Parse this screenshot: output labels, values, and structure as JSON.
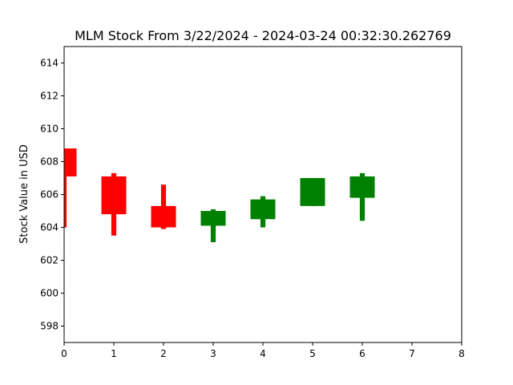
{
  "chart_data": {
    "type": "candlestick",
    "title": "MLM Stock From 3/22/2024 - 2024-03-24 00:32:30.262769",
    "xlabel": "",
    "ylabel": "Stock Value in USD",
    "xlim": [
      0,
      8
    ],
    "ylim": [
      597,
      615
    ],
    "x_ticks": [
      0,
      1,
      2,
      3,
      4,
      5,
      6,
      7,
      8
    ],
    "y_ticks": [
      598,
      600,
      602,
      604,
      606,
      608,
      610,
      612,
      614
    ],
    "grid": false,
    "colors": {
      "up": "#008000",
      "down": "#ff0000"
    },
    "candles": [
      {
        "x": 0,
        "open": 608.8,
        "close": 607.1,
        "high": 608.8,
        "low": 604.0,
        "direction": "down"
      },
      {
        "x": 1,
        "open": 607.1,
        "close": 604.8,
        "high": 607.3,
        "low": 603.5,
        "direction": "down"
      },
      {
        "x": 2,
        "open": 605.3,
        "close": 604.0,
        "high": 606.6,
        "low": 603.9,
        "direction": "down"
      },
      {
        "x": 3,
        "open": 604.1,
        "close": 605.0,
        "high": 605.1,
        "low": 603.1,
        "direction": "up"
      },
      {
        "x": 4,
        "open": 604.5,
        "close": 605.7,
        "high": 605.9,
        "low": 604.0,
        "direction": "up"
      },
      {
        "x": 5,
        "open": 605.3,
        "close": 607.0,
        "high": 607.0,
        "low": 605.3,
        "direction": "up"
      },
      {
        "x": 6,
        "open": 605.8,
        "close": 607.1,
        "high": 607.3,
        "low": 604.4,
        "direction": "up"
      }
    ]
  }
}
